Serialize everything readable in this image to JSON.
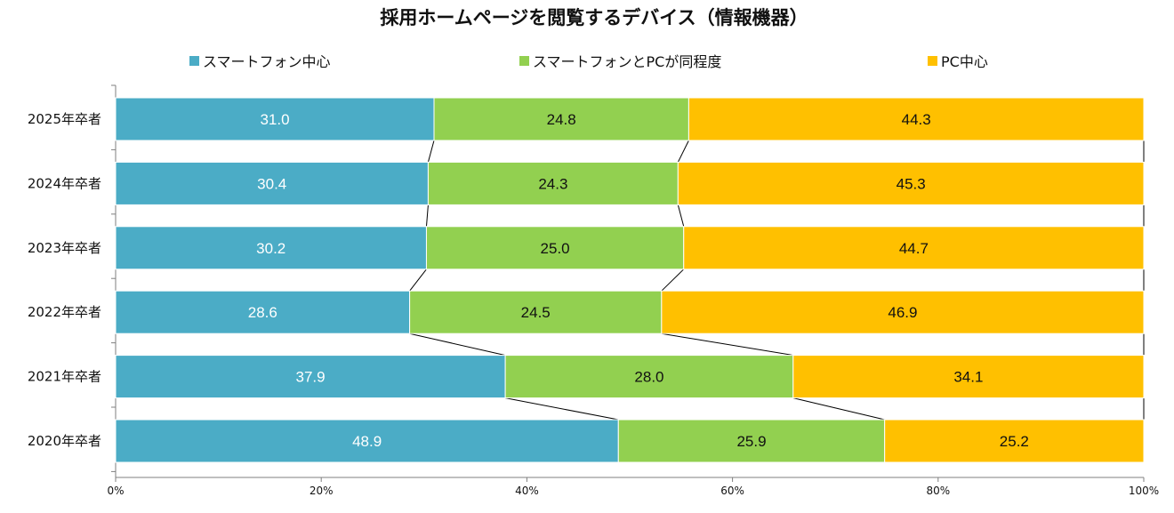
{
  "chart_data": {
    "type": "bar",
    "orientation": "horizontal",
    "stacked": true,
    "title": "採用ホームページを閲覧するデバイス（情報機器）",
    "categories": [
      "2025年卒者",
      "2024年卒者",
      "2023年卒者",
      "2022年卒者",
      "2021年卒者",
      "2020年卒者"
    ],
    "series": [
      {
        "name": "スマートフォン中心",
        "color": "#4BACC6",
        "label_color": "#ffffff",
        "values": [
          31.0,
          30.4,
          30.2,
          28.6,
          37.9,
          48.9
        ]
      },
      {
        "name": "スマートフォンとPCが同程度",
        "color": "#92D050",
        "label_color": "#111111",
        "values": [
          24.8,
          24.3,
          25.0,
          24.5,
          28.0,
          25.9
        ]
      },
      {
        "name": "PC中心",
        "color": "#FFC000",
        "label_color": "#111111",
        "values": [
          44.3,
          45.3,
          44.7,
          46.9,
          34.1,
          25.2
        ]
      }
    ],
    "value_labels": [
      [
        "31.0",
        "30.4",
        "30.2",
        "28.6",
        "37.9",
        "48.9"
      ],
      [
        "24.8",
        "24.3",
        "25.0",
        "24.5",
        "28.0",
        "25.9"
      ],
      [
        "44.3",
        "45.3",
        "44.7",
        "46.9",
        "34.1",
        "25.2"
      ]
    ],
    "x_ticks": [
      "0%",
      "20%",
      "40%",
      "60%",
      "80%",
      "100%"
    ],
    "xlim": [
      0,
      100
    ],
    "series_lines": true,
    "legend": "top",
    "grid": false
  }
}
